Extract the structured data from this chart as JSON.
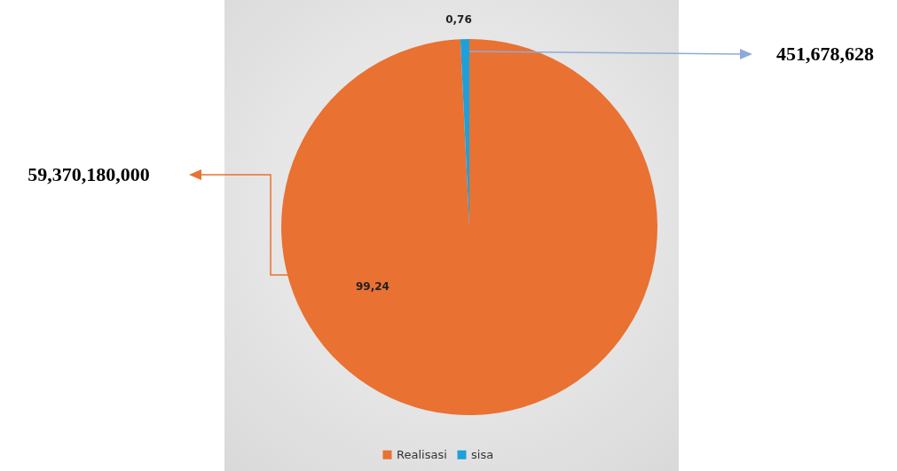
{
  "chart_data": {
    "type": "pie",
    "categories": [
      "Realisasi",
      "sisa"
    ],
    "values": [
      99.24,
      0.76
    ],
    "colors": [
      "#e97132",
      "#1ea0d8"
    ],
    "value_labels": [
      "99,24",
      "0,76"
    ],
    "legend": "bottom",
    "annotations": [
      "59,370,180,000",
      "451,678,628"
    ]
  }
}
